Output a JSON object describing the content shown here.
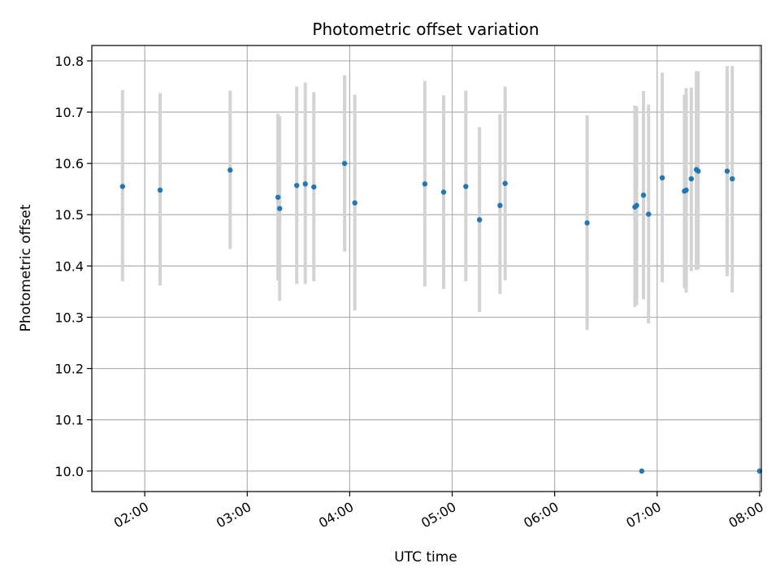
{
  "chart_data": {
    "type": "scatter",
    "title": "Photometric offset variation",
    "xlabel": "UTC time",
    "ylabel": "Photometric offset",
    "xlim": [
      "01:29",
      "08:01"
    ],
    "ylim": [
      9.96,
      10.83
    ],
    "x_ticks": [
      "02:00",
      "03:00",
      "04:00",
      "05:00",
      "06:00",
      "07:00",
      "08:00"
    ],
    "y_ticks": [
      10.0,
      10.1,
      10.2,
      10.3,
      10.4,
      10.5,
      10.6,
      10.7,
      10.8
    ],
    "grid": true,
    "colors": {
      "point": "#1f77b4",
      "errorbar": "#d3d3d3",
      "grid": "#b0b0b0"
    },
    "points": [
      {
        "t": "01:47",
        "y": 10.555,
        "lo": 10.37,
        "hi": 10.743
      },
      {
        "t": "02:09",
        "y": 10.548,
        "lo": 10.362,
        "hi": 10.737
      },
      {
        "t": "02:50",
        "y": 10.587,
        "lo": 10.433,
        "hi": 10.742
      },
      {
        "t": "03:18",
        "y": 10.534,
        "lo": 10.372,
        "hi": 10.697
      },
      {
        "t": "03:19",
        "y": 10.512,
        "lo": 10.332,
        "hi": 10.692
      },
      {
        "t": "03:29",
        "y": 10.557,
        "lo": 10.365,
        "hi": 10.75
      },
      {
        "t": "03:34",
        "y": 10.56,
        "lo": 10.365,
        "hi": 10.758
      },
      {
        "t": "03:39",
        "y": 10.554,
        "lo": 10.37,
        "hi": 10.739
      },
      {
        "t": "03:57",
        "y": 10.6,
        "lo": 10.428,
        "hi": 10.772
      },
      {
        "t": "04:03",
        "y": 10.523,
        "lo": 10.313,
        "hi": 10.734
      },
      {
        "t": "04:44",
        "y": 10.56,
        "lo": 10.36,
        "hi": 10.761
      },
      {
        "t": "04:55",
        "y": 10.544,
        "lo": 10.355,
        "hi": 10.733
      },
      {
        "t": "05:08",
        "y": 10.555,
        "lo": 10.37,
        "hi": 10.742
      },
      {
        "t": "05:16",
        "y": 10.49,
        "lo": 10.31,
        "hi": 10.671
      },
      {
        "t": "05:28",
        "y": 10.518,
        "lo": 10.345,
        "hi": 10.696
      },
      {
        "t": "05:31",
        "y": 10.561,
        "lo": 10.372,
        "hi": 10.75
      },
      {
        "t": "06:19",
        "y": 10.484,
        "lo": 10.275,
        "hi": 10.694
      },
      {
        "t": "06:47",
        "y": 10.515,
        "lo": 10.32,
        "hi": 10.713
      },
      {
        "t": "06:48",
        "y": 10.518,
        "lo": 10.324,
        "hi": 10.711
      },
      {
        "t": "06:51",
        "y": 10.0,
        "lo": 10.0,
        "hi": 10.0
      },
      {
        "t": "06:52",
        "y": 10.538,
        "lo": 10.335,
        "hi": 10.741
      },
      {
        "t": "06:55",
        "y": 10.501,
        "lo": 10.288,
        "hi": 10.715
      },
      {
        "t": "07:03",
        "y": 10.572,
        "lo": 10.368,
        "hi": 10.777
      },
      {
        "t": "07:16",
        "y": 10.546,
        "lo": 10.357,
        "hi": 10.734
      },
      {
        "t": "07:17",
        "y": 10.548,
        "lo": 10.348,
        "hi": 10.747
      },
      {
        "t": "07:20",
        "y": 10.57,
        "lo": 10.39,
        "hi": 10.748
      },
      {
        "t": "07:23",
        "y": 10.588,
        "lo": 10.392,
        "hi": 10.78
      },
      {
        "t": "07:24",
        "y": 10.585,
        "lo": 10.393,
        "hi": 10.78
      },
      {
        "t": "07:41",
        "y": 10.585,
        "lo": 10.38,
        "hi": 10.79
      },
      {
        "t": "07:44",
        "y": 10.57,
        "lo": 10.348,
        "hi": 10.79
      },
      {
        "t": "08:00",
        "y": 10.0,
        "lo": 10.0,
        "hi": 10.0
      }
    ]
  }
}
